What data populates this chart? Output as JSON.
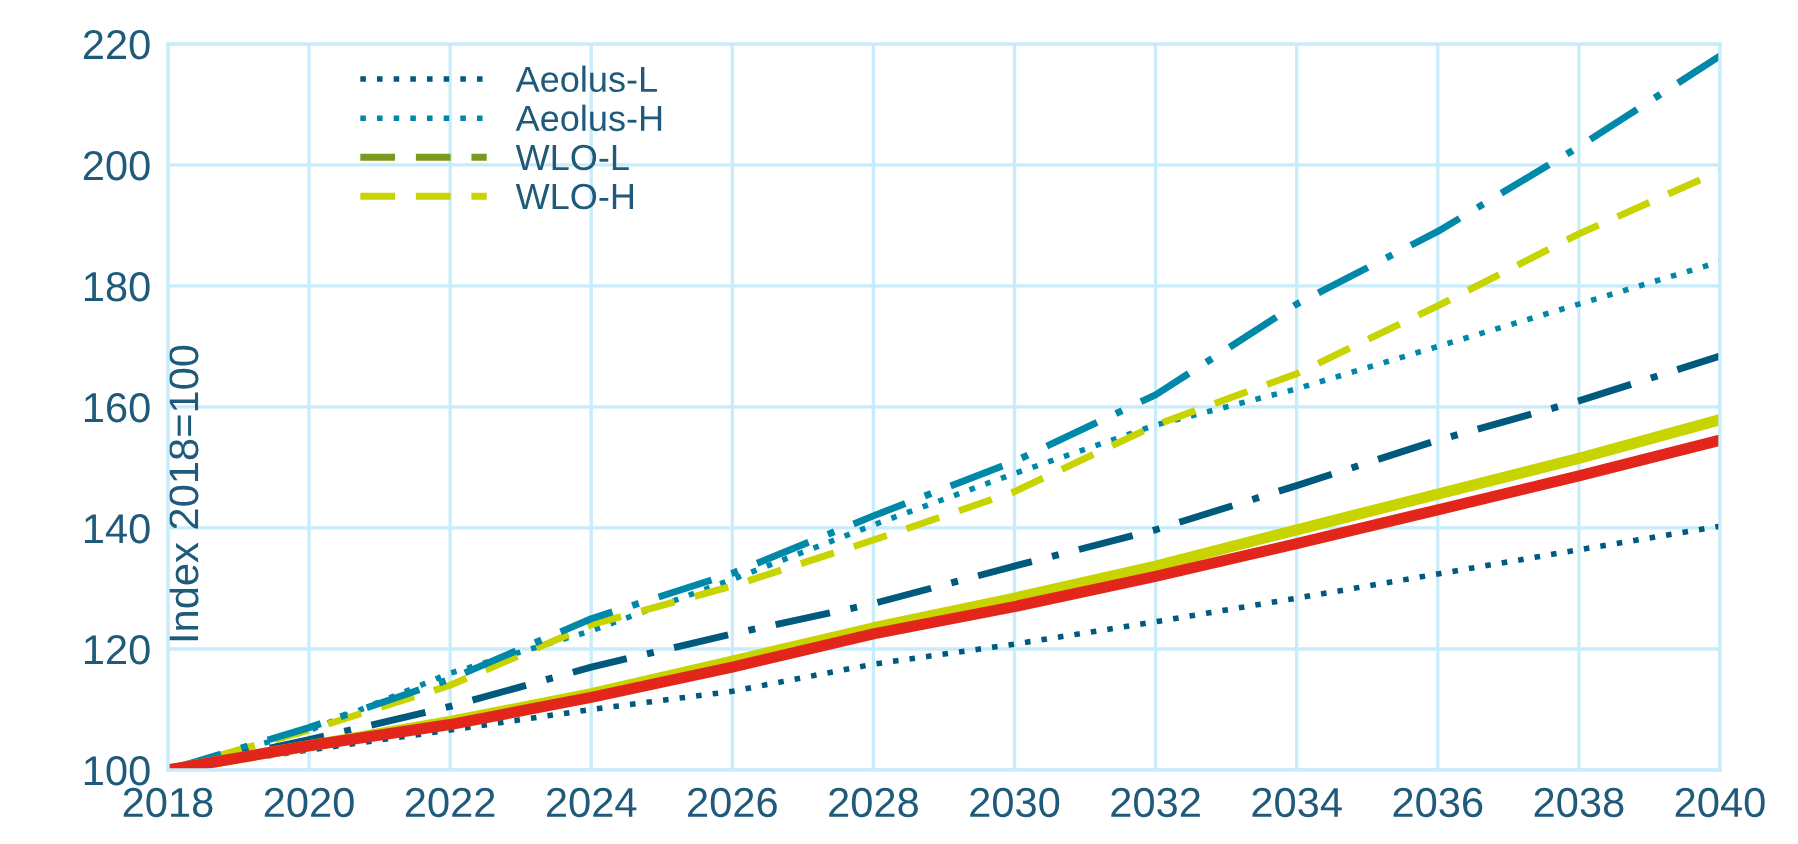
{
  "chart_data": {
    "type": "line",
    "ylabel": "Index 2018=100",
    "x": [
      2018,
      2020,
      2022,
      2024,
      2026,
      2028,
      2030,
      2032,
      2034,
      2036,
      2038,
      2040
    ],
    "series": [
      {
        "name": "Aeolus-L",
        "color": "#005a7d",
        "line_style": "dotted",
        "values": [
          100,
          103.3,
          106.6,
          110,
          113,
          117.5,
          120.8,
          124.5,
          128.4,
          132.4,
          136.4,
          140.3
        ]
      },
      {
        "name": "Aeolus-H",
        "color": "#0088a8",
        "line_style": "dotted",
        "values": [
          100,
          106.5,
          116,
          123,
          131.5,
          140.5,
          149,
          157,
          163,
          170,
          177,
          184
        ]
      },
      {
        "name": "WLO-L",
        "color": "#7a9a1e",
        "line_style": "dashed",
        "values": [
          null,
          null,
          null,
          null,
          null,
          null,
          null,
          null,
          null,
          null,
          null,
          null
        ]
      },
      {
        "name": "WLO-H",
        "color": "#c8d400",
        "line_style": "dashed",
        "values": [
          100,
          106.6,
          114,
          124,
          130.4,
          138,
          146,
          157,
          165.5,
          176.7,
          188.6,
          199
        ]
      },
      {
        "color": "#0088a8",
        "line_style": "dashdot",
        "values": [
          100,
          107,
          115,
          125,
          132.5,
          142,
          151,
          162,
          177,
          189,
          203,
          218
        ]
      },
      {
        "color": "#005a7d",
        "line_style": "dashdot",
        "values": [
          100,
          105,
          110.5,
          117,
          122.5,
          127.5,
          133.7,
          139.7,
          147,
          154.5,
          161,
          168.4
        ]
      },
      {
        "color": "#c8d400",
        "line_style": "solid",
        "values": [
          100,
          104,
          108,
          112.6,
          118,
          123.5,
          128.4,
          133.7,
          139.7,
          145.6,
          151.5,
          157.9
        ]
      },
      {
        "color": "#e3261c",
        "line_style": "solid",
        "values": [
          100,
          104,
          107.5,
          112,
          117,
          122.5,
          127,
          132,
          137.4,
          143,
          148.6,
          154.5
        ]
      }
    ],
    "xlim": [
      2018,
      2040
    ],
    "xticks": [
      2018,
      2020,
      2022,
      2024,
      2026,
      2028,
      2030,
      2032,
      2034,
      2036,
      2038,
      2040
    ],
    "ylim": [
      100,
      220
    ],
    "yticks": [
      100,
      120,
      140,
      160,
      180,
      200,
      220
    ],
    "grid": true,
    "legend": "top left",
    "marker": "none"
  }
}
